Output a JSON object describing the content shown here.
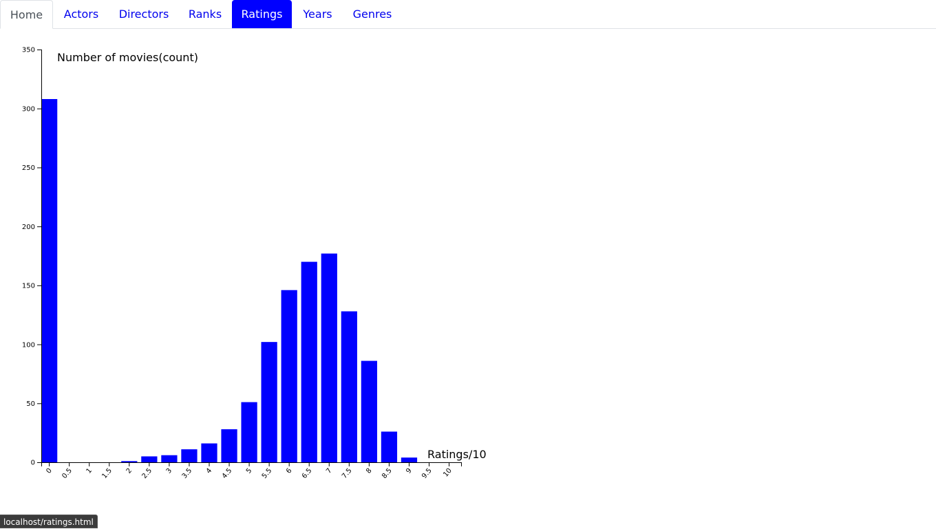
{
  "nav": {
    "tabs": [
      {
        "label": "Home",
        "state": "default"
      },
      {
        "label": "Actors",
        "state": "link"
      },
      {
        "label": "Directors",
        "state": "link"
      },
      {
        "label": "Ranks",
        "state": "link"
      },
      {
        "label": "Ratings",
        "state": "active"
      },
      {
        "label": "Years",
        "state": "link"
      },
      {
        "label": "Genres",
        "state": "link"
      }
    ]
  },
  "colors": {
    "bar": "#0000ff",
    "active_tab": "#0000ff",
    "link": "#0000ee"
  },
  "status_bar": {
    "url": "localhost/ratings.html"
  },
  "chart_data": {
    "type": "bar",
    "categories": [
      "0",
      "0.5",
      "1",
      "1.5",
      "2",
      "2.5",
      "3",
      "3.5",
      "4",
      "4.5",
      "5",
      "5.5",
      "6",
      "6.5",
      "7",
      "7.5",
      "8",
      "8.5",
      "9",
      "9.5",
      "10"
    ],
    "values": [
      308,
      0,
      0,
      0,
      1,
      5,
      6,
      11,
      16,
      28,
      51,
      102,
      146,
      170,
      177,
      128,
      86,
      26,
      4,
      0,
      0
    ],
    "ylabel": "Number of movies(count)",
    "xlabel": "Ratings/10",
    "ylim": [
      0,
      350
    ],
    "yticks": [
      0,
      50,
      100,
      150,
      200,
      250,
      300,
      350
    ],
    "grid": false
  }
}
